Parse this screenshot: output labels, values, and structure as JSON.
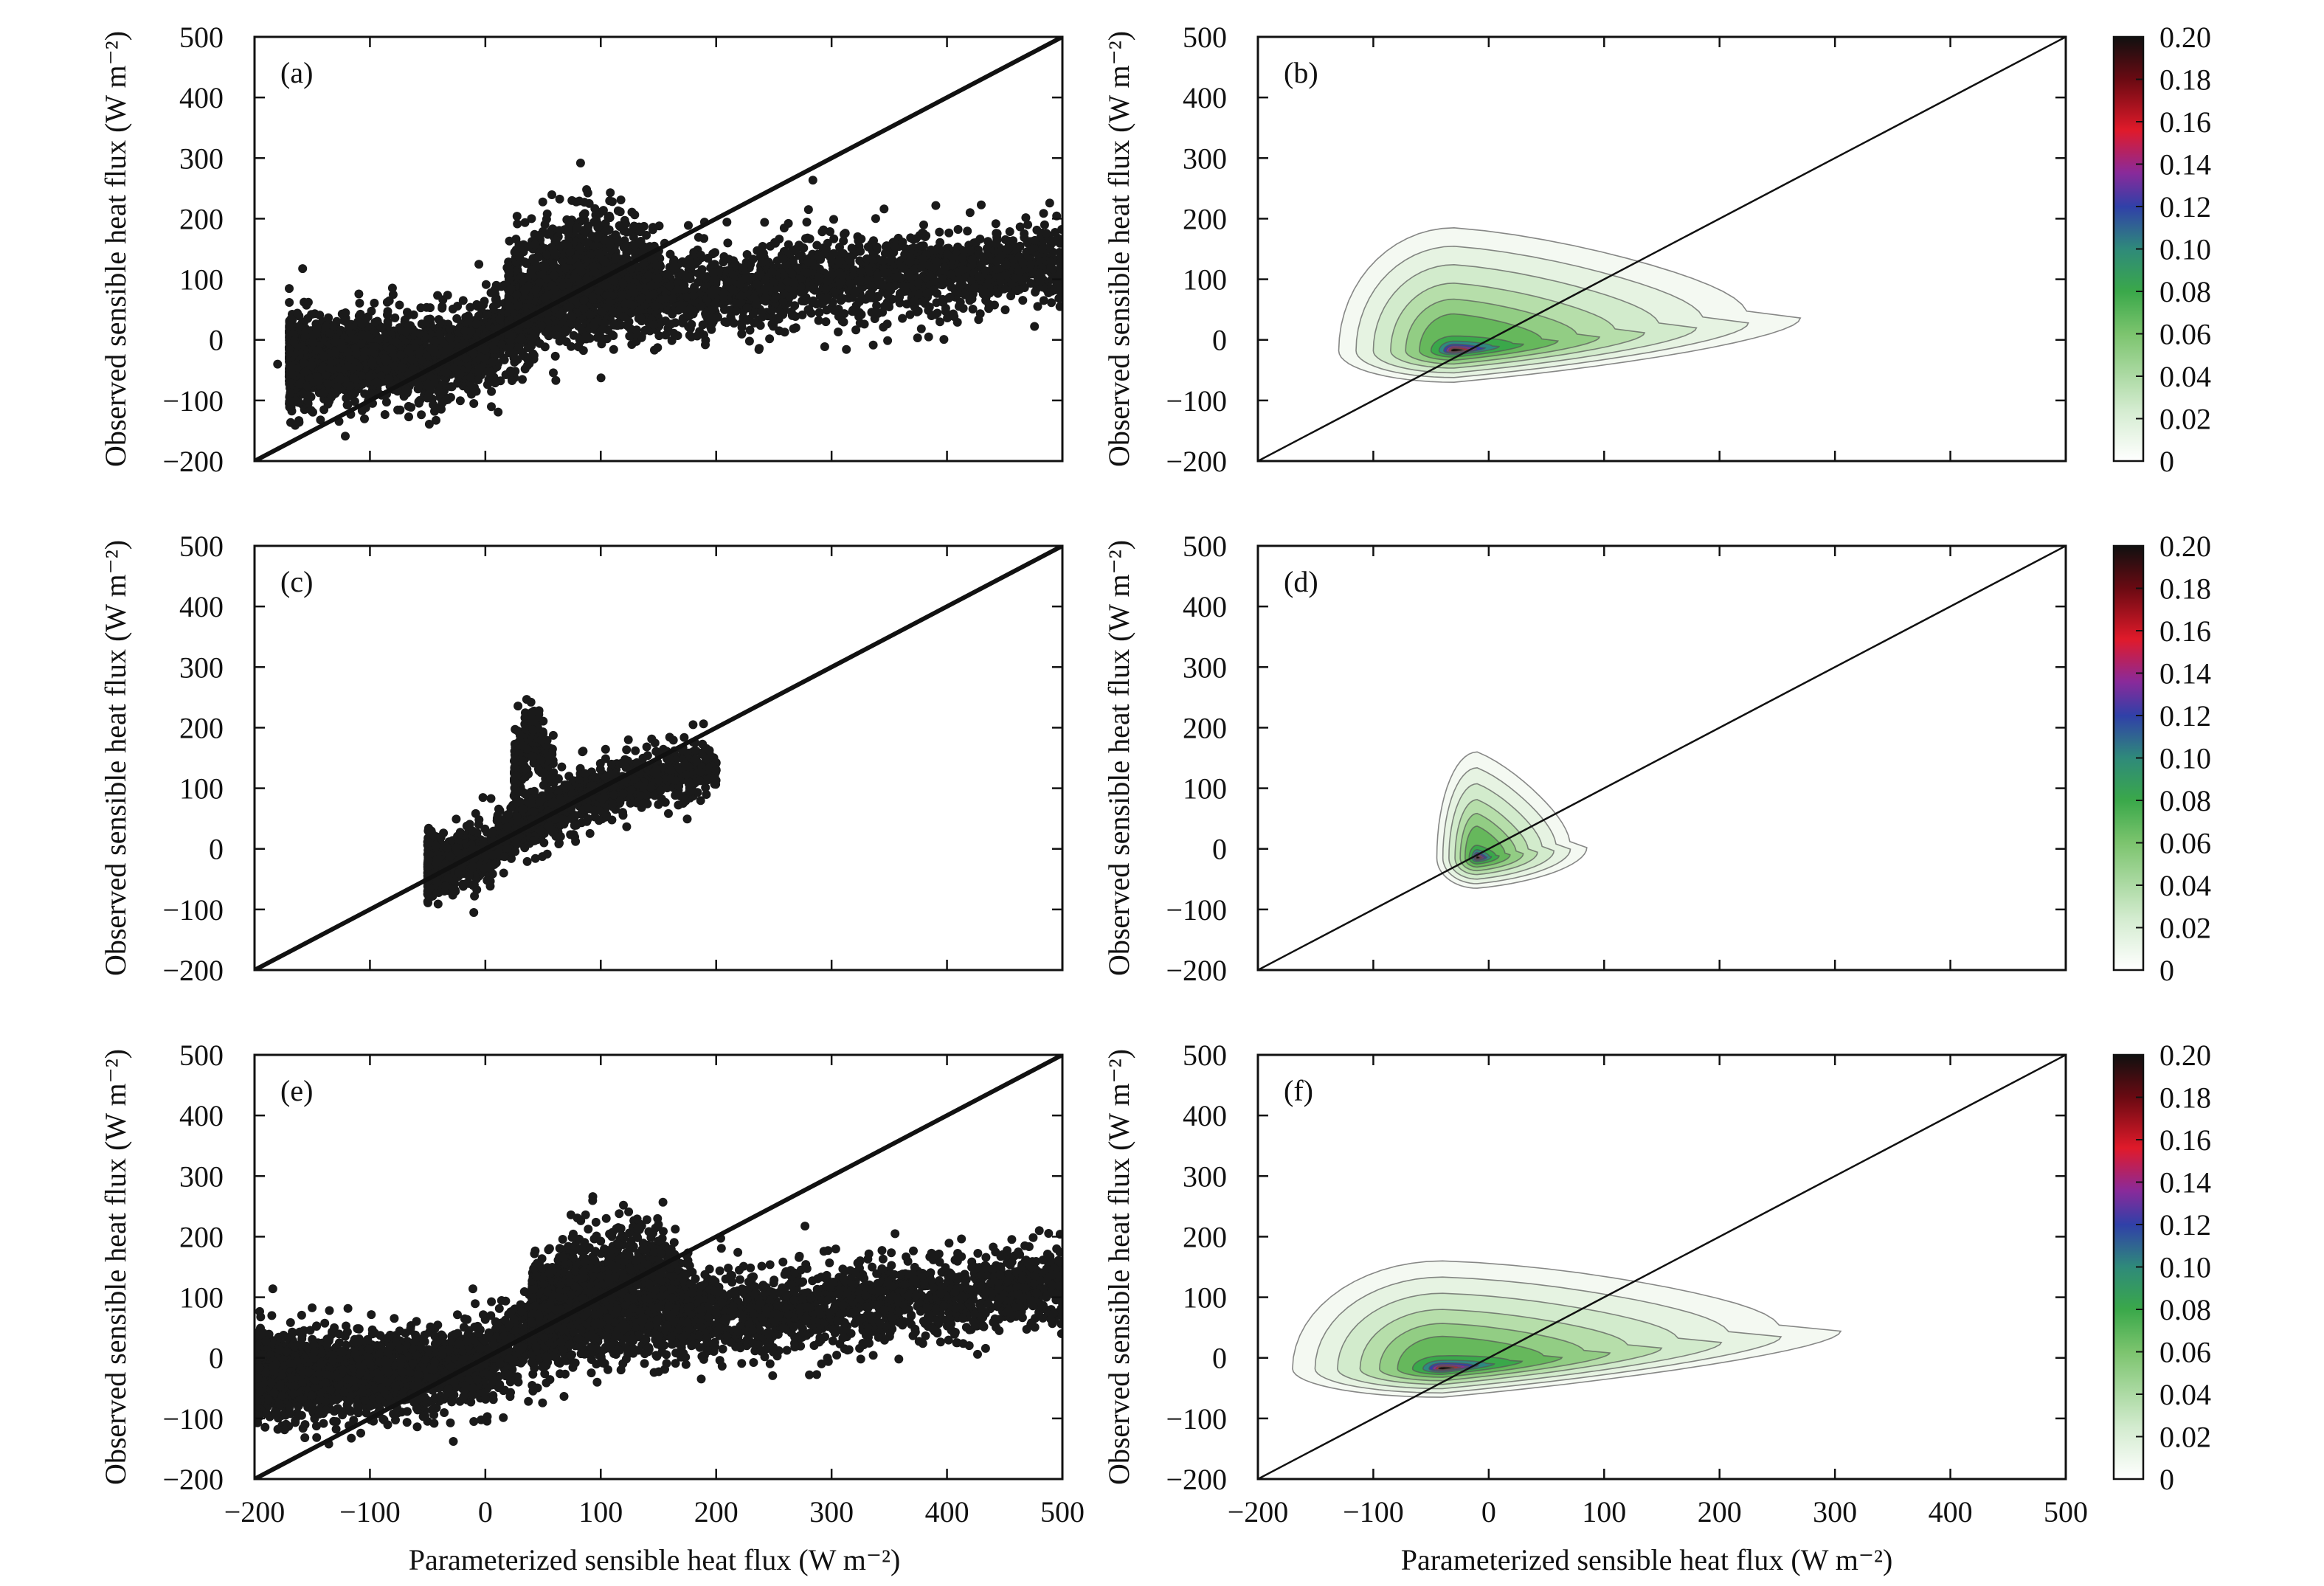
{
  "figure": {
    "xlabel_left": "Parameterized sensible heat flux (W m⁻²)",
    "xlabel_right": "Parameterized sensible heat flux (W m⁻²)",
    "colors": {
      "points": "#1a1a1a",
      "axis": "#111111",
      "contour_line": "#555555"
    }
  },
  "chart_data": [
    {
      "panel": "(a)",
      "type": "scatter",
      "ylabel": "Observed sensible heat flux (W m⁻²)",
      "xlim": [
        -200,
        500
      ],
      "ylim": [
        -200,
        500
      ],
      "xticks": [
        -200,
        -100,
        0,
        100,
        200,
        300,
        400,
        500
      ],
      "yticks": [
        -200,
        -100,
        0,
        100,
        200,
        300,
        400,
        500
      ],
      "show_xtick_labels": false,
      "reference_line": {
        "from": [
          -200,
          -200
        ],
        "to": [
          500,
          500
        ],
        "style": "thick"
      },
      "point_clusters": [
        {
          "x_range": [
            -170,
            500
          ],
          "y_center_at_x": [
            [
              -170,
              -35
            ],
            [
              -50,
              -30
            ],
            [
              0,
              -10
            ],
            [
              50,
              60
            ],
            [
              100,
              70
            ],
            [
              200,
              80
            ],
            [
              300,
              100
            ],
            [
              400,
              110
            ],
            [
              500,
              130
            ]
          ],
          "spread": 45
        },
        {
          "x_range": [
            20,
            150
          ],
          "y_center_at_x": [
            [
              20,
              60
            ],
            [
              60,
              130
            ],
            [
              100,
              140
            ],
            [
              150,
              100
            ]
          ],
          "spread": 55
        }
      ],
      "outlier_points": [
        [
          -180,
          -40
        ],
        [
          -10,
          -105
        ],
        [
          -30,
          -95
        ],
        [
          40,
          200
        ],
        [
          90,
          225
        ],
        [
          110,
          228
        ],
        [
          280,
          215
        ],
        [
          420,
          210
        ],
        [
          470,
          190
        ],
        [
          500,
          160
        ],
        [
          490,
          120
        ],
        [
          480,
          110
        ]
      ]
    },
    {
      "panel": "(b)",
      "type": "heatmap",
      "ylabel": "Observed sensible heat flux (W m⁻²)",
      "xlim": [
        -200,
        500
      ],
      "ylim": [
        -200,
        500
      ],
      "xticks": [
        -200,
        -100,
        0,
        100,
        200,
        300,
        400,
        500
      ],
      "yticks": [
        -200,
        -100,
        0,
        100,
        200,
        300,
        400,
        500
      ],
      "show_xtick_labels": false,
      "reference_line": {
        "from": [
          -200,
          -200
        ],
        "to": [
          500,
          500
        ],
        "style": "thin"
      },
      "density_peak": [
        -30,
        -18
      ],
      "density_extent": {
        "x": [
          -130,
          270
        ],
        "y": [
          -70,
          185
        ]
      },
      "colorbar": {
        "ticks": [
          "0.20",
          "0.18",
          "0.16",
          "0.14",
          "0.12",
          "0.10",
          "0.08",
          "0.06",
          "0.04",
          "0.02",
          "0"
        ],
        "max": 0.2,
        "min": 0
      }
    },
    {
      "panel": "(c)",
      "type": "scatter",
      "ylabel": "Observed sensible heat flux (W m⁻²)",
      "xlim": [
        -200,
        500
      ],
      "ylim": [
        -200,
        500
      ],
      "xticks": [
        -200,
        -100,
        0,
        100,
        200,
        300,
        400,
        500
      ],
      "yticks": [
        -200,
        -100,
        0,
        100,
        200,
        300,
        400,
        500
      ],
      "show_xtick_labels": false,
      "reference_line": {
        "from": [
          -200,
          -200
        ],
        "to": [
          500,
          500
        ],
        "style": "thick"
      },
      "point_clusters": [
        {
          "x_range": [
            -50,
            200
          ],
          "y_center_at_x": [
            [
              -50,
              -30
            ],
            [
              0,
              -10
            ],
            [
              30,
              40
            ],
            [
              100,
              100
            ],
            [
              200,
              140
            ]
          ],
          "spread": 30
        },
        {
          "x_range": [
            25,
            60
          ],
          "y_center_at_x": [
            [
              25,
              120
            ],
            [
              40,
              180
            ],
            [
              60,
              130
            ]
          ],
          "spread": 40
        }
      ],
      "outlier_points": [
        [
          40,
          225
        ],
        [
          -10,
          -105
        ],
        [
          200,
          130
        ],
        [
          180,
          205
        ],
        [
          -45,
          -40
        ]
      ]
    },
    {
      "panel": "(d)",
      "type": "heatmap",
      "ylabel": "Observed sensible heat flux (W m⁻²)",
      "xlim": [
        -200,
        500
      ],
      "ylim": [
        -200,
        500
      ],
      "xticks": [
        -200,
        -100,
        0,
        100,
        200,
        300,
        400,
        500
      ],
      "yticks": [
        -200,
        -100,
        0,
        100,
        200,
        300,
        400,
        500
      ],
      "show_xtick_labels": false,
      "reference_line": {
        "from": [
          -200,
          -200
        ],
        "to": [
          500,
          500
        ],
        "style": "thin"
      },
      "density_peak": [
        -10,
        -15
      ],
      "density_extent": {
        "x": [
          -45,
          85
        ],
        "y": [
          -65,
          160
        ]
      },
      "colorbar": {
        "ticks": [
          "0.20",
          "0.18",
          "0.16",
          "0.14",
          "0.12",
          "0.10",
          "0.08",
          "0.06",
          "0.04",
          "0.02",
          "0"
        ],
        "max": 0.2,
        "min": 0
      }
    },
    {
      "panel": "(e)",
      "type": "scatter",
      "ylabel": "Observed sensible heat flux (W m⁻²)",
      "xlim": [
        -200,
        500
      ],
      "ylim": [
        -200,
        500
      ],
      "xticks": [
        -200,
        -100,
        0,
        100,
        200,
        300,
        400,
        500
      ],
      "yticks": [
        -200,
        -100,
        0,
        100,
        200,
        300,
        400,
        500
      ],
      "show_xtick_labels": true,
      "reference_line": {
        "from": [
          -200,
          -200
        ],
        "to": [
          500,
          500
        ],
        "style": "thick"
      },
      "point_clusters": [
        {
          "x_range": [
            -200,
            500
          ],
          "y_center_at_x": [
            [
              -200,
              -30
            ],
            [
              -50,
              -25
            ],
            [
              0,
              -5
            ],
            [
              50,
              50
            ],
            [
              100,
              60
            ],
            [
              200,
              70
            ],
            [
              300,
              85
            ],
            [
              400,
              100
            ],
            [
              500,
              120
            ]
          ],
          "spread": 45
        },
        {
          "x_range": [
            40,
            180
          ],
          "y_center_at_x": [
            [
              40,
              60
            ],
            [
              80,
              130
            ],
            [
              140,
              150
            ],
            [
              180,
              100
            ]
          ],
          "spread": 55
        }
      ],
      "outlier_points": [
        [
          -195,
          -55
        ],
        [
          -100,
          -80
        ],
        [
          -10,
          -105
        ],
        [
          140,
          228
        ],
        [
          150,
          220
        ],
        [
          355,
          205
        ],
        [
          480,
          210
        ],
        [
          500,
          90
        ],
        [
          495,
          180
        ]
      ]
    },
    {
      "panel": "(f)",
      "type": "heatmap",
      "ylabel": "Observed sensible heat flux (W m⁻²)",
      "xlim": [
        -200,
        500
      ],
      "ylim": [
        -200,
        500
      ],
      "xticks": [
        -200,
        -100,
        0,
        100,
        200,
        300,
        400,
        500
      ],
      "yticks": [
        -200,
        -100,
        0,
        100,
        200,
        300,
        400,
        500
      ],
      "show_xtick_labels": true,
      "reference_line": {
        "from": [
          -200,
          -200
        ],
        "to": [
          500,
          500
        ],
        "style": "thin"
      },
      "density_peak": [
        -40,
        -18
      ],
      "density_extent": {
        "x": [
          -170,
          305
        ],
        "y": [
          -65,
          160
        ]
      },
      "colorbar": {
        "ticks": [
          "0.20",
          "0.18",
          "0.16",
          "0.14",
          "0.12",
          "0.10",
          "0.08",
          "0.06",
          "0.04",
          "0.02",
          "0"
        ],
        "max": 0.2,
        "min": 0
      }
    }
  ]
}
